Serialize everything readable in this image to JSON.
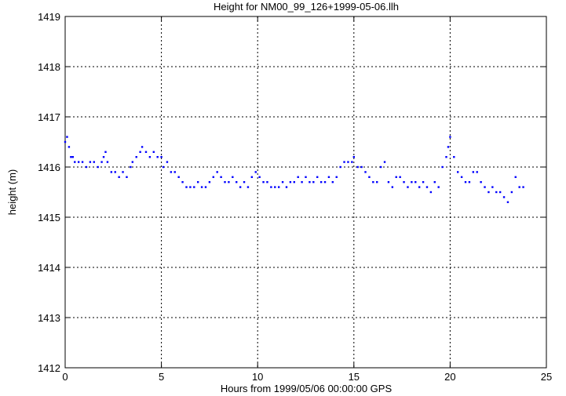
{
  "chart_data": {
    "type": "scatter",
    "title": "Height for NM00_99_126+1999-05-06.llh",
    "xlabel": "Hours from 1999/05/06 00:00:00 GPS",
    "ylabel": "height (m)",
    "xlim": [
      0,
      25
    ],
    "ylim": [
      1412,
      1419
    ],
    "xticks": [
      0,
      5,
      10,
      15,
      20,
      25
    ],
    "yticks": [
      1412,
      1413,
      1414,
      1415,
      1416,
      1417,
      1418,
      1419
    ],
    "grid": true,
    "point_color": "#0000ff",
    "series": [
      {
        "x": [
          0.0,
          0.1,
          0.2,
          0.3,
          0.4,
          0.5,
          0.7,
          0.9,
          1.1,
          1.3,
          1.5,
          1.7,
          1.9,
          2.0,
          2.1,
          2.2,
          2.4,
          2.6,
          2.8,
          3.0,
          3.2,
          3.4,
          3.5,
          3.7,
          3.9,
          4.0,
          4.2,
          4.4,
          4.6,
          4.8,
          5.0,
          5.1,
          5.3,
          5.5,
          5.7,
          5.9,
          6.1,
          6.3,
          6.5,
          6.7,
          6.9,
          7.1,
          7.3,
          7.5,
          7.7,
          7.9,
          8.1,
          8.3,
          8.5,
          8.7,
          8.9,
          9.1,
          9.3,
          9.5,
          9.7,
          9.9,
          10.1,
          10.3,
          10.5,
          10.7,
          10.9,
          11.1,
          11.3,
          11.5,
          11.7,
          11.9,
          12.1,
          12.3,
          12.5,
          12.7,
          12.9,
          13.1,
          13.3,
          13.5,
          13.7,
          13.9,
          14.1,
          14.3,
          14.5,
          14.7,
          14.9,
          15.0,
          15.2,
          15.4,
          15.6,
          15.8,
          16.0,
          16.2,
          16.4,
          16.6,
          16.8,
          17.0,
          17.2,
          17.4,
          17.6,
          17.8,
          18.0,
          18.2,
          18.4,
          18.6,
          18.8,
          19.0,
          19.2,
          19.4,
          19.6,
          19.8,
          19.9,
          20.0,
          20.2,
          20.4,
          20.6,
          20.8,
          21.0,
          21.2,
          21.4,
          21.6,
          21.8,
          22.0,
          22.2,
          22.4,
          22.6,
          22.8,
          23.0,
          23.2,
          23.4,
          23.6,
          23.8
        ],
        "y": [
          1416.5,
          1416.6,
          1416.4,
          1416.2,
          1416.2,
          1416.1,
          1416.1,
          1416.1,
          1416.0,
          1416.1,
          1416.1,
          1416.0,
          1416.1,
          1416.2,
          1416.3,
          1416.1,
          1415.9,
          1415.9,
          1415.8,
          1415.9,
          1415.8,
          1416.0,
          1416.1,
          1416.2,
          1416.3,
          1416.4,
          1416.3,
          1416.2,
          1416.3,
          1416.2,
          1416.2,
          1416.0,
          1416.1,
          1415.9,
          1415.9,
          1415.8,
          1415.7,
          1415.6,
          1415.6,
          1415.6,
          1415.7,
          1415.6,
          1415.6,
          1415.7,
          1415.8,
          1415.9,
          1415.8,
          1415.7,
          1415.7,
          1415.8,
          1415.7,
          1415.6,
          1415.7,
          1415.6,
          1415.8,
          1415.9,
          1415.8,
          1415.7,
          1415.7,
          1415.6,
          1415.6,
          1415.6,
          1415.7,
          1415.6,
          1415.7,
          1415.7,
          1415.8,
          1415.7,
          1415.8,
          1415.7,
          1415.7,
          1415.8,
          1415.7,
          1415.7,
          1415.8,
          1415.7,
          1415.8,
          1416.0,
          1416.1,
          1416.1,
          1416.1,
          1416.2,
          1416.0,
          1416.0,
          1415.9,
          1415.8,
          1415.7,
          1415.7,
          1416.0,
          1416.1,
          1415.7,
          1415.6,
          1415.8,
          1415.8,
          1415.7,
          1415.6,
          1415.7,
          1415.7,
          1415.6,
          1415.7,
          1415.6,
          1415.5,
          1415.7,
          1415.6,
          1416.0,
          1416.2,
          1416.4,
          1416.6,
          1416.2,
          1415.9,
          1415.8,
          1415.7,
          1415.7,
          1415.9,
          1415.9,
          1415.7,
          1415.6,
          1415.5,
          1415.6,
          1415.5,
          1415.5,
          1415.4,
          1415.3,
          1415.5,
          1415.8,
          1415.6,
          1415.6
        ]
      }
    ]
  }
}
